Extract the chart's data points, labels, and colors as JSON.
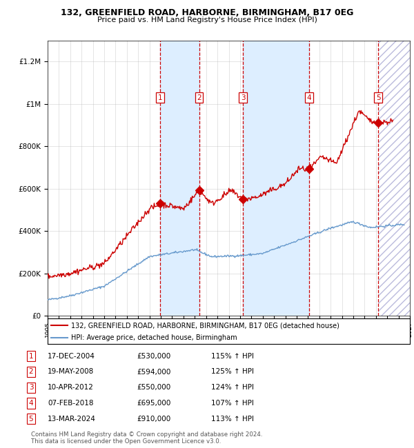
{
  "title1": "132, GREENFIELD ROAD, HARBORNE, BIRMINGHAM, B17 0EG",
  "title2": "Price paid vs. HM Land Registry's House Price Index (HPI)",
  "xlim": [
    1995,
    2027
  ],
  "ylim": [
    0,
    1300000
  ],
  "yticks": [
    0,
    200000,
    400000,
    600000,
    800000,
    1000000,
    1200000
  ],
  "ytick_labels": [
    "£0",
    "£200K",
    "£400K",
    "£600K",
    "£800K",
    "£1M",
    "£1.2M"
  ],
  "xticks": [
    1995,
    1996,
    1997,
    1998,
    1999,
    2000,
    2001,
    2002,
    2003,
    2004,
    2005,
    2006,
    2007,
    2008,
    2009,
    2010,
    2011,
    2012,
    2013,
    2014,
    2015,
    2016,
    2017,
    2018,
    2019,
    2020,
    2021,
    2022,
    2023,
    2024,
    2025,
    2026,
    2027
  ],
  "sale_dates": [
    2004.96,
    2008.38,
    2012.27,
    2018.1,
    2024.2
  ],
  "sale_prices": [
    530000,
    594000,
    550000,
    695000,
    910000
  ],
  "sale_labels": [
    "1",
    "2",
    "3",
    "4",
    "5"
  ],
  "sale_info": [
    {
      "num": "1",
      "date": "17-DEC-2004",
      "price": "£530,000",
      "hpi": "115% ↑ HPI"
    },
    {
      "num": "2",
      "date": "19-MAY-2008",
      "price": "£594,000",
      "hpi": "125% ↑ HPI"
    },
    {
      "num": "3",
      "date": "10-APR-2012",
      "price": "£550,000",
      "hpi": "124% ↑ HPI"
    },
    {
      "num": "4",
      "date": "07-FEB-2018",
      "price": "£695,000",
      "hpi": "107% ↑ HPI"
    },
    {
      "num": "5",
      "date": "13-MAR-2024",
      "price": "£910,000",
      "hpi": "113% ↑ HPI"
    }
  ],
  "legend_line1": "132, GREENFIELD ROAD, HARBORNE, BIRMINGHAM, B17 0EG (detached house)",
  "legend_line2": "HPI: Average price, detached house, Birmingham",
  "footnote1": "Contains HM Land Registry data © Crown copyright and database right 2024.",
  "footnote2": "This data is licensed under the Open Government Licence v3.0.",
  "red_color": "#cc0000",
  "blue_color": "#6699cc",
  "shade_color": "#ddeeff",
  "bg_color": "#ffffff",
  "grid_color": "#bbbbbb"
}
